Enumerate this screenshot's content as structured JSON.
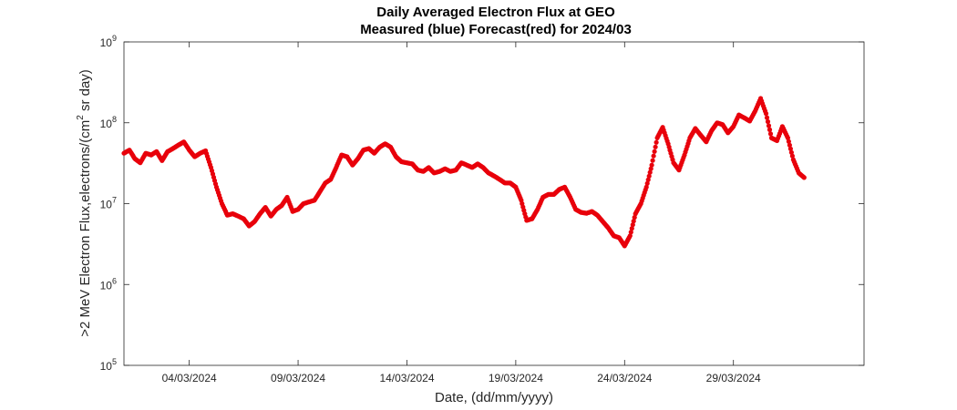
{
  "chart_data": {
    "type": "scatter",
    "title": "Daily Averaged Electron Flux at GEO",
    "subtitle": "Measured (blue) Forecast(red) for 2024/03",
    "xlabel": "Date, (dd/mm/yyyy)",
    "ylabel_parts": [
      ">2 MeV Electron Flux,electrons/(cm",
      "2",
      " sr day)"
    ],
    "y_scale": "log",
    "ylim": [
      100000,
      1000000000
    ],
    "xlim": [
      "2024-03-01 00:00",
      "2024-04-04 00:00"
    ],
    "grid": false,
    "series_color": "#e8000b",
    "x_ticks": [
      {
        "date": "2024-03-04",
        "label": "04/03/2024"
      },
      {
        "date": "2024-03-09",
        "label": "09/03/2024"
      },
      {
        "date": "2024-03-14",
        "label": "14/03/2024"
      },
      {
        "date": "2024-03-19",
        "label": "19/03/2024"
      },
      {
        "date": "2024-03-24",
        "label": "24/03/2024"
      },
      {
        "date": "2024-03-29",
        "label": "29/03/2024"
      }
    ],
    "y_ticks": [
      {
        "value": 100000,
        "base": "10",
        "exp": "5"
      },
      {
        "value": 1000000,
        "base": "10",
        "exp": "6"
      },
      {
        "value": 10000000,
        "base": "10",
        "exp": "7"
      },
      {
        "value": 100000000,
        "base": "10",
        "exp": "8"
      },
      {
        "value": 1000000000,
        "base": "10",
        "exp": "9"
      }
    ],
    "series": [
      {
        "points": [
          [
            "2024-03-01 00:00",
            42000000.0
          ],
          [
            "2024-03-01 06:00",
            46000000.0
          ],
          [
            "2024-03-01 12:00",
            36000000.0
          ],
          [
            "2024-03-01 18:00",
            32000000.0
          ],
          [
            "2024-03-02 00:00",
            42000000.0
          ],
          [
            "2024-03-02 06:00",
            40000000.0
          ],
          [
            "2024-03-02 12:00",
            44000000.0
          ],
          [
            "2024-03-02 18:00",
            34000000.0
          ],
          [
            "2024-03-03 00:00",
            44000000.0
          ],
          [
            "2024-03-03 06:00",
            48000000.0
          ],
          [
            "2024-03-03 12:00",
            53000000.0
          ],
          [
            "2024-03-03 18:00",
            58000000.0
          ],
          [
            "2024-03-04 00:00",
            46000000.0
          ],
          [
            "2024-03-04 06:00",
            38000000.0
          ],
          [
            "2024-03-04 12:00",
            42000000.0
          ],
          [
            "2024-03-04 18:00",
            45000000.0
          ],
          [
            "2024-03-05 00:00",
            28000000.0
          ],
          [
            "2024-03-05 06:00",
            16000000.0
          ],
          [
            "2024-03-05 12:00",
            10000000.0
          ],
          [
            "2024-03-05 18:00",
            7200000.0
          ],
          [
            "2024-03-06 00:00",
            7500000.0
          ],
          [
            "2024-03-06 06:00",
            7000000.0
          ],
          [
            "2024-03-06 12:00",
            6500000.0
          ],
          [
            "2024-03-06 18:00",
            5300000.0
          ],
          [
            "2024-03-07 00:00",
            6000000.0
          ],
          [
            "2024-03-07 06:00",
            7500000.0
          ],
          [
            "2024-03-07 12:00",
            9000000.0
          ],
          [
            "2024-03-07 18:00",
            7000000.0
          ],
          [
            "2024-03-08 00:00",
            8500000.0
          ],
          [
            "2024-03-08 06:00",
            9500000.0
          ],
          [
            "2024-03-08 12:00",
            12000000.0
          ],
          [
            "2024-03-08 18:00",
            8000000.0
          ],
          [
            "2024-03-09 00:00",
            8500000.0
          ],
          [
            "2024-03-09 06:00",
            10000000.0
          ],
          [
            "2024-03-09 12:00",
            10500000.0
          ],
          [
            "2024-03-09 18:00",
            11000000.0
          ],
          [
            "2024-03-10 00:00",
            14000000.0
          ],
          [
            "2024-03-10 06:00",
            18000000.0
          ],
          [
            "2024-03-10 12:00",
            20000000.0
          ],
          [
            "2024-03-10 18:00",
            28000000.0
          ],
          [
            "2024-03-11 00:00",
            40000000.0
          ],
          [
            "2024-03-11 06:00",
            38000000.0
          ],
          [
            "2024-03-11 12:00",
            30000000.0
          ],
          [
            "2024-03-11 18:00",
            36000000.0
          ],
          [
            "2024-03-12 00:00",
            46000000.0
          ],
          [
            "2024-03-12 06:00",
            48000000.0
          ],
          [
            "2024-03-12 12:00",
            42000000.0
          ],
          [
            "2024-03-12 18:00",
            50000000.0
          ],
          [
            "2024-03-13 00:00",
            55000000.0
          ],
          [
            "2024-03-13 06:00",
            50000000.0
          ],
          [
            "2024-03-13 12:00",
            38000000.0
          ],
          [
            "2024-03-13 18:00",
            33000000.0
          ],
          [
            "2024-03-14 00:00",
            32000000.0
          ],
          [
            "2024-03-14 06:00",
            31000000.0
          ],
          [
            "2024-03-14 12:00",
            26000000.0
          ],
          [
            "2024-03-14 18:00",
            25000000.0
          ],
          [
            "2024-03-15 00:00",
            28000000.0
          ],
          [
            "2024-03-15 06:00",
            24000000.0
          ],
          [
            "2024-03-15 12:00",
            25000000.0
          ],
          [
            "2024-03-15 18:00",
            27000000.0
          ],
          [
            "2024-03-16 00:00",
            25000000.0
          ],
          [
            "2024-03-16 06:00",
            26000000.0
          ],
          [
            "2024-03-16 12:00",
            32000000.0
          ],
          [
            "2024-03-16 18:00",
            30000000.0
          ],
          [
            "2024-03-17 00:00",
            28000000.0
          ],
          [
            "2024-03-17 06:00",
            31000000.0
          ],
          [
            "2024-03-17 12:00",
            28000000.0
          ],
          [
            "2024-03-17 18:00",
            24000000.0
          ],
          [
            "2024-03-18 00:00",
            22000000.0
          ],
          [
            "2024-03-18 06:00",
            20000000.0
          ],
          [
            "2024-03-18 12:00",
            18000000.0
          ],
          [
            "2024-03-18 18:00",
            18000000.0
          ],
          [
            "2024-03-19 00:00",
            16000000.0
          ],
          [
            "2024-03-19 06:00",
            11000000.0
          ],
          [
            "2024-03-19 12:00",
            6200000.0
          ],
          [
            "2024-03-19 18:00",
            6500000.0
          ],
          [
            "2024-03-20 00:00",
            8500000.0
          ],
          [
            "2024-03-20 06:00",
            12000000.0
          ],
          [
            "2024-03-20 12:00",
            13000000.0
          ],
          [
            "2024-03-20 18:00",
            13000000.0
          ],
          [
            "2024-03-21 00:00",
            15000000.0
          ],
          [
            "2024-03-21 06:00",
            16000000.0
          ],
          [
            "2024-03-21 12:00",
            12000000.0
          ],
          [
            "2024-03-21 18:00",
            8500000.0
          ],
          [
            "2024-03-22 00:00",
            7800000.0
          ],
          [
            "2024-03-22 06:00",
            7600000.0
          ],
          [
            "2024-03-22 12:00",
            8000000.0
          ],
          [
            "2024-03-22 18:00",
            7200000.0
          ],
          [
            "2024-03-23 00:00",
            6000000.0
          ],
          [
            "2024-03-23 06:00",
            5000000.0
          ],
          [
            "2024-03-23 12:00",
            4000000.0
          ],
          [
            "2024-03-23 18:00",
            3800000.0
          ],
          [
            "2024-03-24 00:00",
            3000000.0
          ],
          [
            "2024-03-24 06:00",
            4000000.0
          ],
          [
            "2024-03-24 12:00",
            7500000.0
          ],
          [
            "2024-03-24 18:00",
            10000000.0
          ],
          [
            "2024-03-25 00:00",
            16000000.0
          ],
          [
            "2024-03-25 06:00",
            30000000.0
          ],
          [
            "2024-03-25 12:00",
            65000000.0
          ],
          [
            "2024-03-25 18:00",
            88000000.0
          ],
          [
            "2024-03-26 00:00",
            55000000.0
          ],
          [
            "2024-03-26 06:00",
            32000000.0
          ],
          [
            "2024-03-26 12:00",
            26000000.0
          ],
          [
            "2024-03-26 18:00",
            40000000.0
          ],
          [
            "2024-03-27 00:00",
            65000000.0
          ],
          [
            "2024-03-27 06:00",
            85000000.0
          ],
          [
            "2024-03-27 12:00",
            70000000.0
          ],
          [
            "2024-03-27 18:00",
            58000000.0
          ],
          [
            "2024-03-28 00:00",
            80000000.0
          ],
          [
            "2024-03-28 06:00",
            100000000.0
          ],
          [
            "2024-03-28 12:00",
            95000000.0
          ],
          [
            "2024-03-28 18:00",
            75000000.0
          ],
          [
            "2024-03-29 00:00",
            90000000.0
          ],
          [
            "2024-03-29 06:00",
            125000000.0
          ],
          [
            "2024-03-29 12:00",
            115000000.0
          ],
          [
            "2024-03-29 18:00",
            105000000.0
          ],
          [
            "2024-03-30 00:00",
            140000000.0
          ],
          [
            "2024-03-30 06:00",
            200000000.0
          ],
          [
            "2024-03-30 12:00",
            130000000.0
          ],
          [
            "2024-03-30 18:00",
            65000000.0
          ],
          [
            "2024-03-31 00:00",
            60000000.0
          ],
          [
            "2024-03-31 06:00",
            90000000.0
          ],
          [
            "2024-03-31 12:00",
            65000000.0
          ],
          [
            "2024-03-31 18:00",
            35000000.0
          ],
          [
            "2024-04-01 00:00",
            24000000.0
          ],
          [
            "2024-04-01 06:00",
            21000000.0
          ]
        ]
      }
    ]
  }
}
